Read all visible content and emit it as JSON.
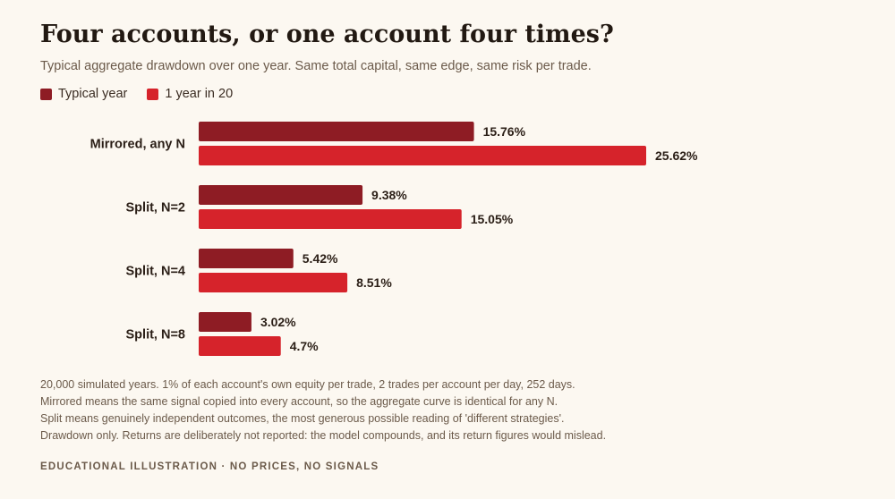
{
  "title": "Four accounts, or one account four times?",
  "subtitle": "Typical aggregate drawdown over one year. Same total capital, same edge, same risk per trade.",
  "legend": [
    {
      "label": "Typical year",
      "color": "#8e1c24"
    },
    {
      "label": "1 year in 20",
      "color": "#d6232b"
    }
  ],
  "chart_data": {
    "type": "bar",
    "orientation": "horizontal",
    "categories": [
      "Mirrored, any N",
      "Split, N=2",
      "Split, N=4",
      "Split, N=8"
    ],
    "series": [
      {
        "name": "Typical year",
        "values": [
          15.76,
          9.38,
          5.42,
          3.02
        ],
        "labels": [
          "15.76%",
          "9.38%",
          "5.42%",
          "3.02%"
        ],
        "color": "#8e1c24"
      },
      {
        "name": "1 year in 20",
        "values": [
          25.62,
          15.05,
          8.51,
          4.7
        ],
        "labels": [
          "25.62%",
          "15.05%",
          "8.51%",
          "4.7%"
        ],
        "color": "#d6232b"
      }
    ],
    "xlim": [
      0,
      25.62
    ],
    "grid": false,
    "legend_position": "top-left"
  },
  "footnotes": [
    "20,000 simulated years. 1% of each account's own equity per trade, 2 trades per account per day, 252 days.",
    "Mirrored means the same signal copied into every account, so the aggregate curve is identical for any N.",
    "Split means genuinely independent outcomes, the most generous possible reading of 'different strategies'.",
    "Drawdown only. Returns are deliberately not reported: the model compounds, and its return figures would mislead."
  ],
  "tagline": "EDUCATIONAL ILLUSTRATION · NO PRICES, NO SIGNALS"
}
